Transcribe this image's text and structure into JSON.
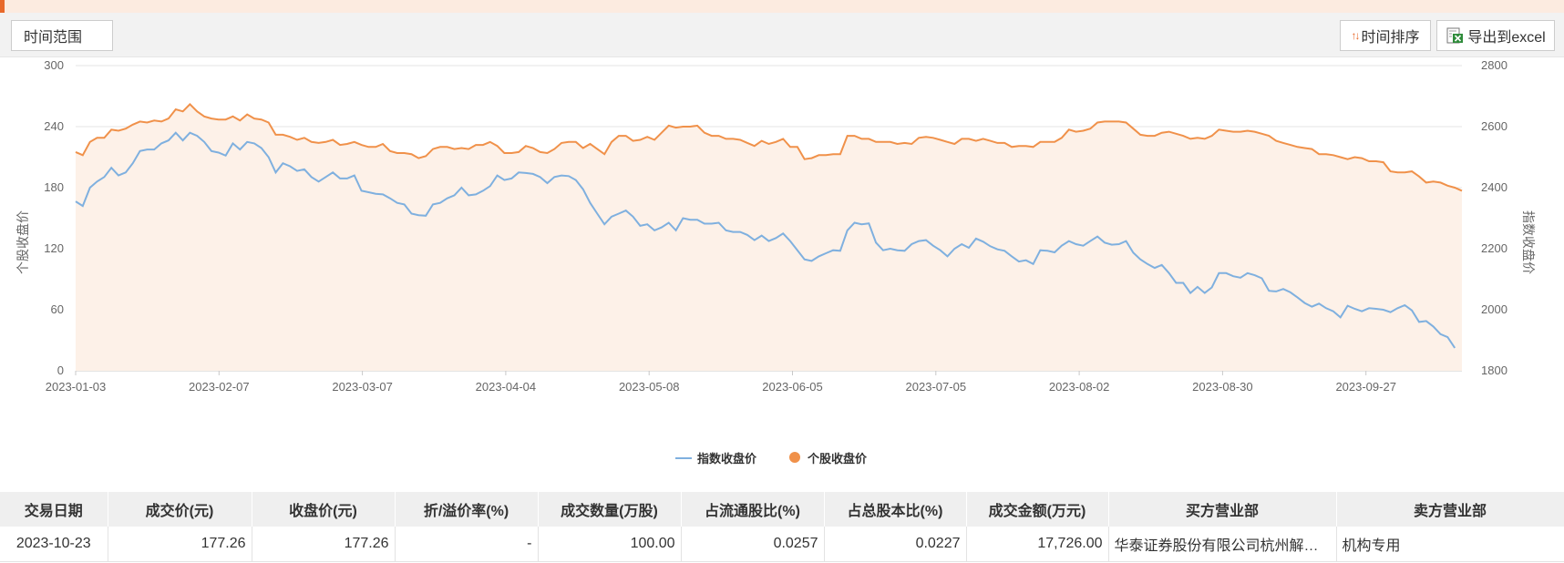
{
  "toolbar": {
    "time_range_label": "时间范围",
    "sort_label": "时间排序",
    "export_label": "导出到excel"
  },
  "colors": {
    "index_line": "#7fb0df",
    "stock_line": "#f0914a",
    "stock_area": "#fdf1e8",
    "accent": "#e8692a"
  },
  "chart_data": {
    "type": "line",
    "x_ticks": [
      "2023-01-03",
      "2023-02-07",
      "2023-03-07",
      "2023-04-04",
      "2023-05-08",
      "2023-06-05",
      "2023-07-05",
      "2023-08-02",
      "2023-08-30",
      "2023-09-27"
    ],
    "y_left_ticks": [
      "0",
      "60",
      "120",
      "180",
      "240",
      "300"
    ],
    "y_right_ticks": [
      "1800",
      "2000",
      "2200",
      "2400",
      "2600",
      "2800"
    ],
    "ylabel_left": "个股收盘价",
    "ylabel_right": "指数收盘价",
    "ylim_left": [
      0,
      300
    ],
    "ylim_right": [
      1800,
      2800
    ],
    "grid": true,
    "legend_position": "bottom-center",
    "series": [
      {
        "name": "指数收盘价",
        "axis": "right",
        "style": "line",
        "values": [
          2355,
          2340,
          2400,
          2420,
          2435,
          2465,
          2440,
          2450,
          2480,
          2520,
          2525,
          2525,
          2545,
          2555,
          2580,
          2555,
          2580,
          2570,
          2550,
          2520,
          2515,
          2505,
          2545,
          2525,
          2550,
          2545,
          2530,
          2500,
          2450,
          2480,
          2470,
          2455,
          2460,
          2435,
          2420,
          2435,
          2450,
          2430,
          2430,
          2440,
          2390,
          2385,
          2380,
          2378,
          2365,
          2350,
          2345,
          2315,
          2310,
          2308,
          2345,
          2350,
          2365,
          2375,
          2400,
          2375,
          2378,
          2390,
          2405,
          2440,
          2425,
          2430,
          2450,
          2448,
          2445,
          2435,
          2415,
          2435,
          2440,
          2438,
          2425,
          2395,
          2350,
          2315,
          2280,
          2305,
          2315,
          2325,
          2305,
          2275,
          2280,
          2260,
          2270,
          2285,
          2260,
          2300,
          2295,
          2295,
          2282,
          2282,
          2285,
          2260,
          2255,
          2255,
          2245,
          2228,
          2243,
          2225,
          2235,
          2250,
          2225,
          2195,
          2165,
          2160,
          2175,
          2185,
          2195,
          2193,
          2260,
          2285,
          2280,
          2283,
          2220,
          2195,
          2200,
          2195,
          2193,
          2215,
          2225,
          2228,
          2210,
          2195,
          2175,
          2200,
          2215,
          2203,
          2233,
          2223,
          2208,
          2198,
          2193,
          2175,
          2158,
          2162,
          2150,
          2195,
          2193,
          2188,
          2210,
          2225,
          2215,
          2210,
          2225,
          2240,
          2220,
          2213,
          2215,
          2225,
          2187,
          2165,
          2150,
          2137,
          2147,
          2120,
          2088,
          2088,
          2055,
          2075,
          2055,
          2073,
          2120,
          2120,
          2110,
          2105,
          2120,
          2113,
          2103,
          2062,
          2060,
          2068,
          2057,
          2040,
          2022,
          2010,
          2020,
          2005,
          1995,
          1975,
          2013,
          2003,
          1995,
          2005,
          2003,
          2000,
          1992,
          2005,
          2015,
          1998,
          1960,
          1963,
          1945,
          1920,
          1910,
          1875
        ]
      },
      {
        "name": "个股收盘价",
        "axis": "left",
        "style": "area",
        "values": [
          215,
          212,
          225,
          229,
          229,
          237,
          236,
          238,
          242,
          245,
          244,
          246,
          245,
          248,
          257,
          255,
          262,
          255,
          250,
          248,
          247,
          247,
          250,
          246,
          252,
          248,
          247,
          244,
          232,
          232,
          230,
          227,
          229,
          225,
          224,
          225,
          227,
          222,
          223,
          225,
          222,
          220,
          220,
          223,
          216,
          214,
          214,
          213,
          209,
          211,
          218,
          220,
          220,
          218,
          219,
          218,
          222,
          222,
          225,
          221,
          214,
          214,
          215,
          221,
          219,
          215,
          214,
          218,
          224,
          225,
          225,
          219,
          223,
          218,
          213,
          225,
          231,
          231,
          226,
          227,
          230,
          227,
          234,
          241,
          239,
          240,
          240,
          241,
          234,
          231,
          231,
          228,
          228,
          227,
          224,
          221,
          226,
          223,
          225,
          228,
          220,
          220,
          208,
          209,
          212,
          212,
          213,
          213,
          231,
          231,
          228,
          228,
          225,
          225,
          225,
          223,
          224,
          223,
          229,
          230,
          229,
          227,
          225,
          223,
          228,
          228,
          226,
          228,
          226,
          224,
          224,
          220,
          221,
          221,
          220,
          225,
          225,
          225,
          229,
          237,
          235,
          236,
          238,
          244,
          245,
          245,
          245,
          244,
          238,
          232,
          231,
          231,
          234,
          235,
          233,
          231,
          228,
          229,
          228,
          231,
          237,
          236,
          235,
          235,
          236,
          235,
          233,
          231,
          226,
          224,
          222,
          220,
          219,
          218,
          213,
          213,
          212,
          210,
          208,
          210,
          209,
          206,
          206,
          205,
          196,
          195,
          195,
          196,
          191,
          185,
          186,
          185,
          182,
          180,
          177
        ]
      }
    ]
  },
  "table": {
    "headers": [
      "交易日期",
      "成交价(元)",
      "收盘价(元)",
      "折/溢价率(%)",
      "成交数量(万股)",
      "占流通股比(%)",
      "占总股本比(%)",
      "成交金额(万元)",
      "买方营业部",
      "卖方营业部"
    ],
    "rows": [
      [
        "2023-10-23",
        "177.26",
        "177.26",
        "-",
        "100.00",
        "0.0257",
        "0.0227",
        "17,726.00",
        "华泰证券股份有限公司杭州解放路证券营业部",
        "机构专用"
      ]
    ]
  }
}
